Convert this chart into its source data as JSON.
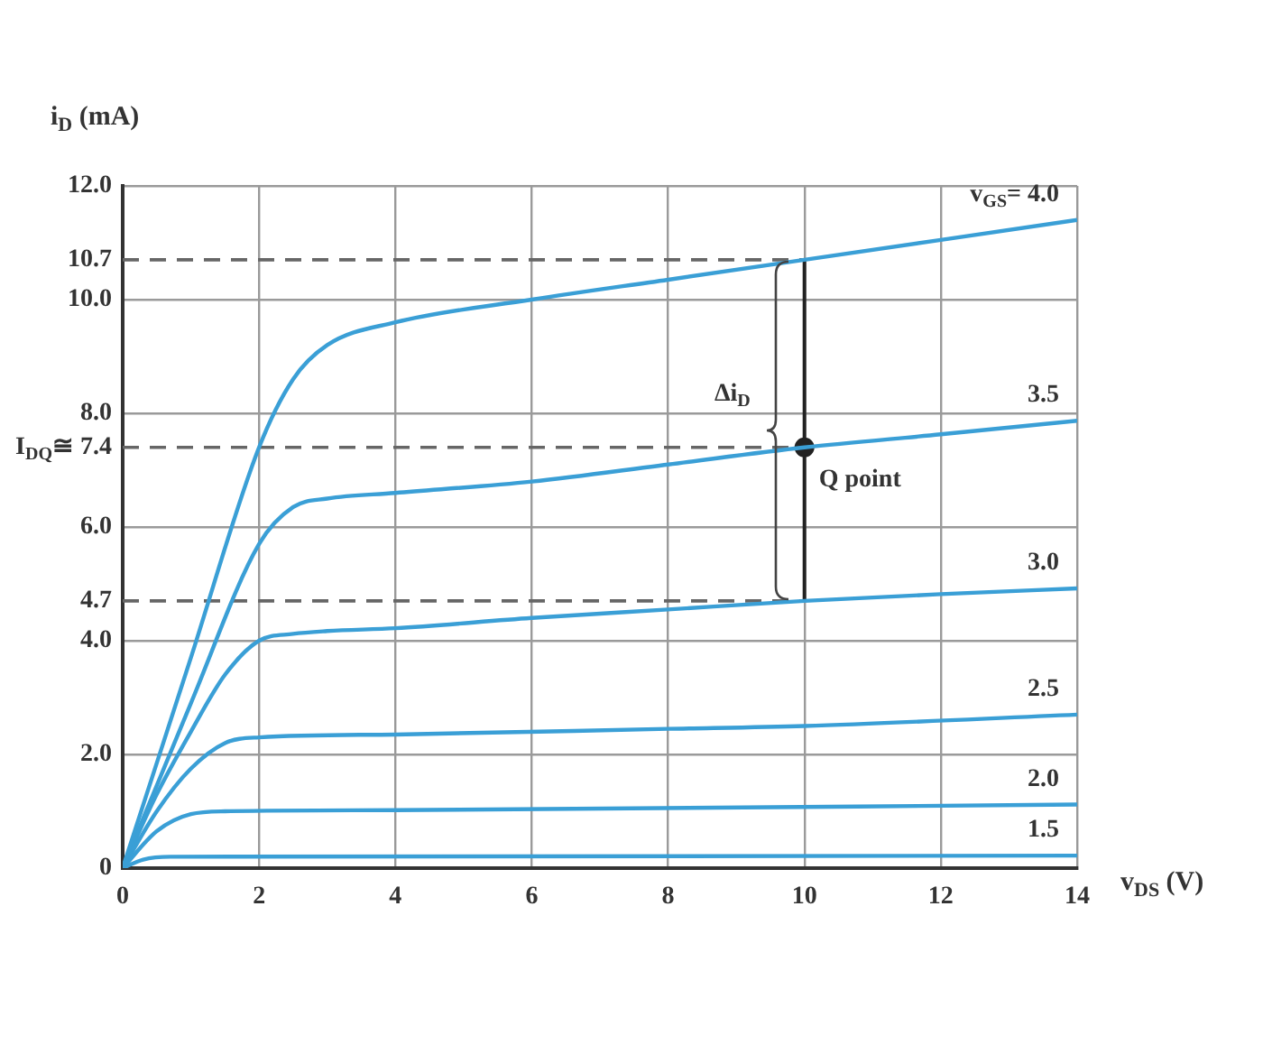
{
  "chart_data": {
    "type": "line",
    "xlabel": "v$_{DS}$ (V)",
    "ylabel": "i$_{D}$ (mA)",
    "xlim": [
      0,
      14
    ],
    "ylim": [
      0,
      12
    ],
    "xticks": [
      0,
      2,
      4,
      6,
      8,
      10,
      12,
      14
    ],
    "yticks": [
      0,
      {
        "value": 2,
        "label": "2.0"
      },
      {
        "value": 4,
        "label": "4.0"
      },
      {
        "value": 6,
        "label": "6.0"
      },
      {
        "value": 8,
        "label": "8.0"
      },
      {
        "value": 10,
        "label": "10.0"
      },
      {
        "value": 12,
        "label": "12.0"
      }
    ],
    "grid": true,
    "legend": false,
    "marker": "none",
    "line_style": "solid",
    "series": [
      {
        "name": "v$_{GS}$= 4.0",
        "color": "#3a9fd6",
        "x": [
          0,
          1,
          2,
          2.5,
          3,
          4,
          6,
          8,
          10,
          12,
          14
        ],
        "values": [
          0,
          3.7,
          7.4,
          8.6,
          9.2,
          9.6,
          10.0,
          10.35,
          10.7,
          11.05,
          11.4
        ]
      },
      {
        "name": "3.5",
        "color": "#3a9fd6",
        "x": [
          0,
          1,
          2,
          2.5,
          3,
          4,
          6,
          8,
          10,
          12,
          14
        ],
        "values": [
          0,
          2.9,
          5.7,
          6.35,
          6.5,
          6.6,
          6.8,
          7.1,
          7.4,
          7.63,
          7.87
        ]
      },
      {
        "name": "3.0",
        "color": "#3a9fd6",
        "x": [
          0,
          0.5,
          1,
          1.5,
          2,
          2.5,
          3,
          4,
          6,
          8,
          10,
          12,
          14
        ],
        "values": [
          0,
          1.3,
          2.4,
          3.4,
          4.0,
          4.12,
          4.17,
          4.22,
          4.4,
          4.55,
          4.7,
          4.82,
          4.92
        ]
      },
      {
        "name": "2.5",
        "color": "#3a9fd6",
        "x": [
          0,
          0.5,
          1,
          1.5,
          2,
          4,
          8,
          10,
          14
        ],
        "values": [
          0,
          1.0,
          1.75,
          2.2,
          2.3,
          2.35,
          2.45,
          2.5,
          2.7
        ]
      },
      {
        "name": "2.0",
        "color": "#3a9fd6",
        "x": [
          0,
          0.5,
          1,
          1.5,
          4,
          14
        ],
        "values": [
          0,
          0.65,
          0.95,
          1.0,
          1.02,
          1.12
        ]
      },
      {
        "name": "1.5",
        "color": "#3a9fd6",
        "x": [
          0,
          0.3,
          0.7,
          14
        ],
        "values": [
          0,
          0.15,
          0.2,
          0.22
        ]
      },
      {
        "type": "scatter",
        "marker": "circle",
        "color": "#222222",
        "x": [
          10
        ],
        "values": [
          7.4
        ]
      }
    ],
    "ref_lines": [
      {
        "axis": "y",
        "value": 10.7,
        "label": "10.7",
        "color": "#666666",
        "line_style": "dashed"
      },
      {
        "axis": "y",
        "value": 7.4,
        "label": "I$_{DQ}$≅ 7.4",
        "color": "#666666",
        "line_style": "dashed"
      },
      {
        "axis": "y",
        "value": 4.7,
        "label": "4.7",
        "color": "#666666",
        "line_style": "dashed"
      },
      {
        "axis": "x",
        "value": 10,
        "color": "#222222",
        "line_style": "solid"
      }
    ],
    "annotations": [
      "Δi$_{D}$",
      {
        "text": "Q point",
        "x": 10,
        "y": 7.4
      }
    ]
  }
}
